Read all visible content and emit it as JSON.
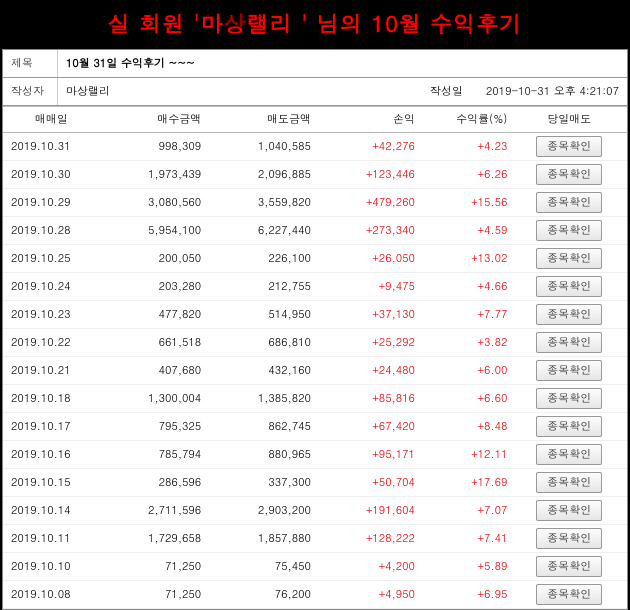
{
  "title": "실 회원 '마상랠리 ' 님의 10월 수익후기",
  "subject_label": "제목",
  "subject": "10월 31일 수익후기 ~~~",
  "author_label": "작성자",
  "author": "마상랠리",
  "date_label": "작성일",
  "date": "2019-10-31 오후 4:21:07",
  "columns": {
    "date": "매매일",
    "buy": "매수금액",
    "sell": "매도금액",
    "profit": "손익",
    "rate": "수익률(%)",
    "action": "당일매도"
  },
  "button_label": "종목확인",
  "rows": [
    {
      "date": "2019.10.31",
      "buy": "998,309",
      "sell": "1,040,585",
      "profit": "+42,276",
      "rate": "+4.23"
    },
    {
      "date": "2019.10.30",
      "buy": "1,973,439",
      "sell": "2,096,885",
      "profit": "+123,446",
      "rate": "+6.26"
    },
    {
      "date": "2019.10.29",
      "buy": "3,080,560",
      "sell": "3,559,820",
      "profit": "+479,260",
      "rate": "+15.56"
    },
    {
      "date": "2019.10.28",
      "buy": "5,954,100",
      "sell": "6,227,440",
      "profit": "+273,340",
      "rate": "+4.59"
    },
    {
      "date": "2019.10.25",
      "buy": "200,050",
      "sell": "226,100",
      "profit": "+26,050",
      "rate": "+13.02"
    },
    {
      "date": "2019.10.24",
      "buy": "203,280",
      "sell": "212,755",
      "profit": "+9,475",
      "rate": "+4.66"
    },
    {
      "date": "2019.10.23",
      "buy": "477,820",
      "sell": "514,950",
      "profit": "+37,130",
      "rate": "+7.77"
    },
    {
      "date": "2019.10.22",
      "buy": "661,518",
      "sell": "686,810",
      "profit": "+25,292",
      "rate": "+3.82"
    },
    {
      "date": "2019.10.21",
      "buy": "407,680",
      "sell": "432,160",
      "profit": "+24,480",
      "rate": "+6.00"
    },
    {
      "date": "2019.10.18",
      "buy": "1,300,004",
      "sell": "1,385,820",
      "profit": "+85,816",
      "rate": "+6.60"
    },
    {
      "date": "2019.10.17",
      "buy": "795,325",
      "sell": "862,745",
      "profit": "+67,420",
      "rate": "+8.48"
    },
    {
      "date": "2019.10.16",
      "buy": "785,794",
      "sell": "880,965",
      "profit": "+95,171",
      "rate": "+12.11"
    },
    {
      "date": "2019.10.15",
      "buy": "286,596",
      "sell": "337,300",
      "profit": "+50,704",
      "rate": "+17.69"
    },
    {
      "date": "2019.10.14",
      "buy": "2,711,596",
      "sell": "2,903,200",
      "profit": "+191,604",
      "rate": "+7.07"
    },
    {
      "date": "2019.10.11",
      "buy": "1,729,658",
      "sell": "1,857,880",
      "profit": "+128,222",
      "rate": "+7.41"
    },
    {
      "date": "2019.10.10",
      "buy": "71,250",
      "sell": "75,450",
      "profit": "+4,200",
      "rate": "+5.89"
    },
    {
      "date": "2019.10.08",
      "buy": "71,250",
      "sell": "76,200",
      "profit": "+4,950",
      "rate": "+6.95"
    }
  ]
}
